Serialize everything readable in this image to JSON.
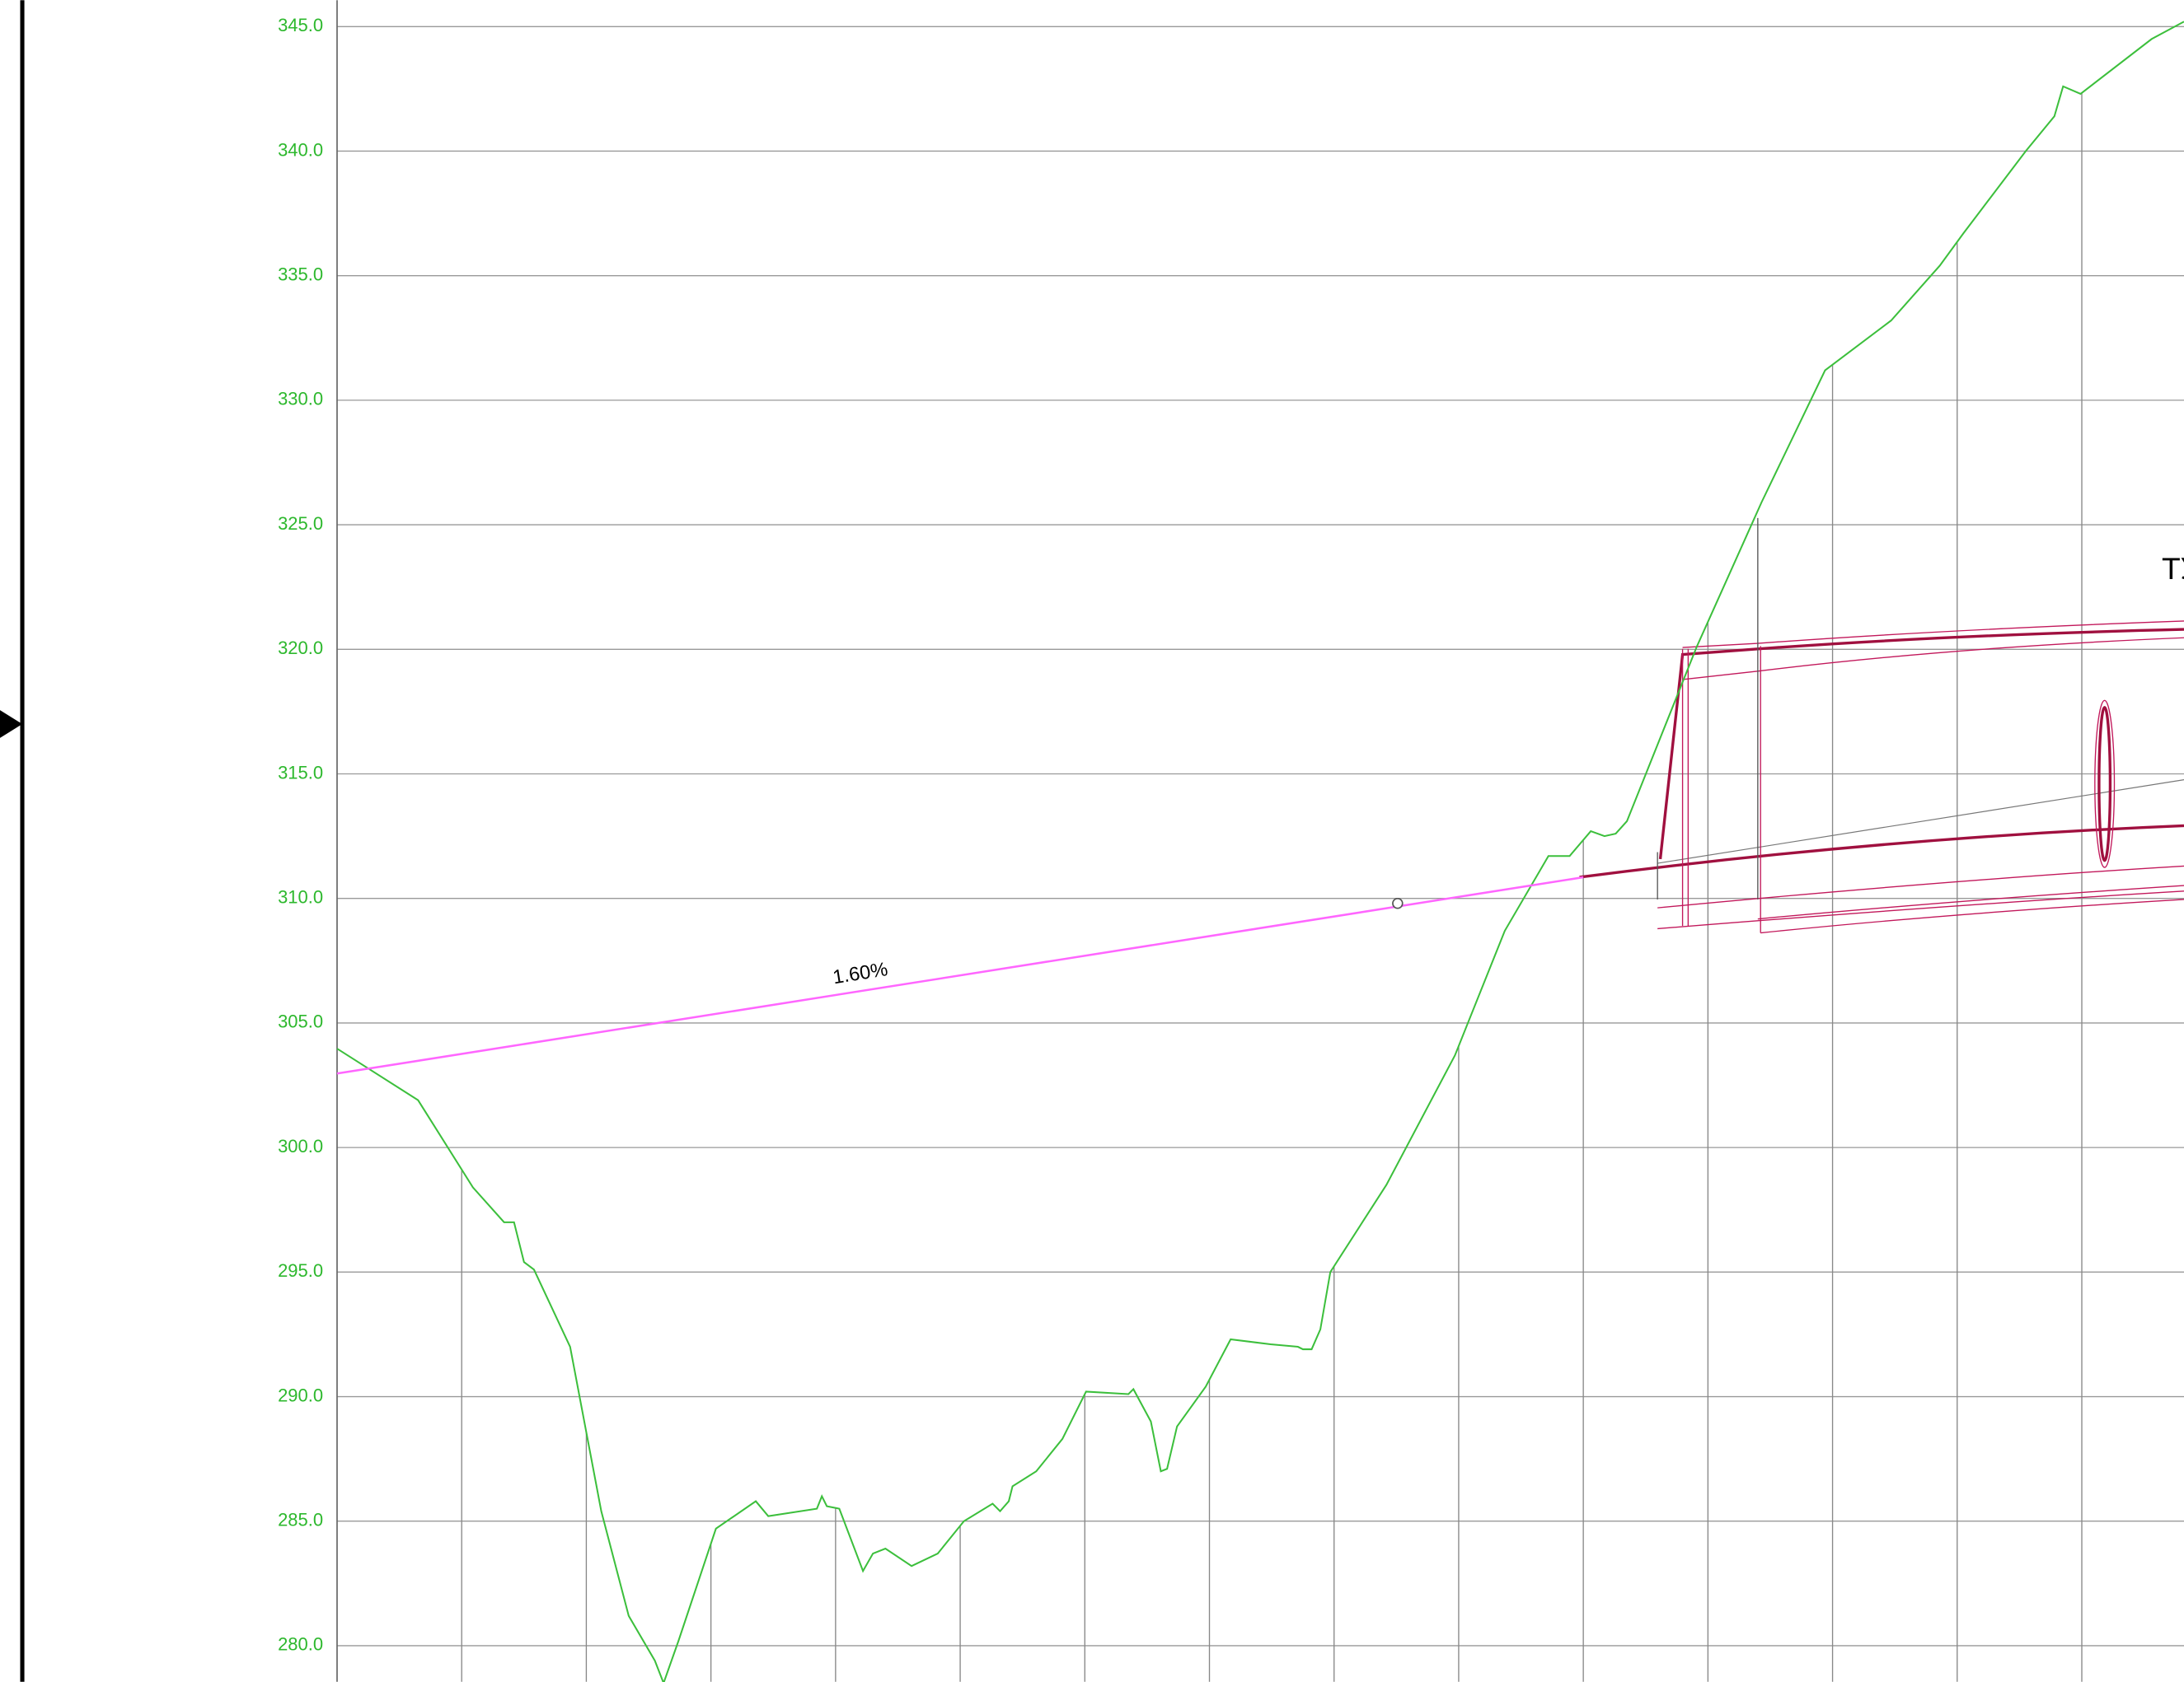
{
  "chart_data": {
    "type": "line",
    "x": [
      0,
      0.65,
      1.09,
      1.34,
      1.42,
      1.5,
      1.58,
      1.87,
      2.12,
      2.34,
      2.55,
      2.62,
      2.74,
      3.04,
      3.36,
      3.46,
      3.85,
      3.89,
      3.93,
      4.03,
      4.22,
      4.3,
      4.4,
      4.61,
      4.82,
      5.03,
      5.26,
      5.32,
      5.39,
      5.42,
      5.61,
      5.82,
      6.01,
      6.35,
      6.39,
      6.53,
      6.61,
      6.66,
      6.74,
      6.97,
      7.17,
      7.49,
      7.71,
      7.75,
      7.82,
      7.89,
      7.97,
      8.42,
      8.97,
      9.37,
      9.72,
      9.89,
      10.06,
      10.17,
      10.26,
      10.35,
      10.91,
      11.43,
      11.94,
      12.47,
      12.86,
      13.05,
      13.55,
      13.78,
      13.85,
      13.99,
      14.56,
      14.82
    ],
    "values": [
      303.97,
      301.9,
      298.4,
      297.0,
      297.0,
      295.4,
      295.1,
      292.0,
      285.4,
      281.2,
      279.4,
      278.5,
      280.2,
      284.7,
      285.8,
      285.2,
      285.5,
      286.0,
      285.6,
      285.5,
      283.0,
      283.7,
      283.9,
      283.2,
      283.7,
      285.0,
      285.7,
      285.4,
      285.8,
      286.4,
      287.0,
      288.3,
      290.2,
      290.1,
      290.3,
      289.0,
      287.0,
      287.1,
      288.8,
      290.4,
      292.3,
      292.1,
      292.0,
      291.9,
      291.9,
      292.7,
      295.0,
      298.5,
      303.7,
      308.7,
      311.7,
      311.7,
      312.7,
      312.5,
      312.6,
      313.1,
      320.1,
      325.9,
      331.2,
      333.2,
      335.4,
      336.7,
      340.0,
      341.4,
      342.6,
      342.3,
      344.5,
      345.2
    ],
    "color": "#3cbf3c",
    "design_line": {
      "x": [
        0,
        10.0
      ],
      "values": [
        302.97,
        310.85
      ],
      "color": "#ff66ff",
      "label": "1.60%"
    },
    "marker": {
      "x": 8.51,
      "value": 309.8
    },
    "annotation": "ТУ",
    "xlim": [
      0,
      14.82
    ],
    "xticks": [
      1,
      2,
      3,
      4,
      5,
      6,
      7,
      8,
      9,
      10,
      11,
      12,
      13,
      14
    ],
    "ylim": [
      278.55,
      346.06
    ],
    "yticks": [
      {
        "value": 280,
        "label": "280.0"
      },
      {
        "value": 285,
        "label": "285.0"
      },
      {
        "value": 290,
        "label": "290.0"
      },
      {
        "value": 295,
        "label": "295.0"
      },
      {
        "value": 300,
        "label": "300.0"
      },
      {
        "value": 305,
        "label": "305.0"
      },
      {
        "value": 310,
        "label": "310.0"
      },
      {
        "value": 315,
        "label": "315.0"
      },
      {
        "value": 320,
        "label": "320.0"
      },
      {
        "value": 325,
        "label": "325.0"
      },
      {
        "value": 330,
        "label": "330.0"
      },
      {
        "value": 335,
        "label": "335.0"
      },
      {
        "value": 340,
        "label": "340.0"
      },
      {
        "value": 345,
        "label": "345.0"
      }
    ],
    "grid": true
  }
}
